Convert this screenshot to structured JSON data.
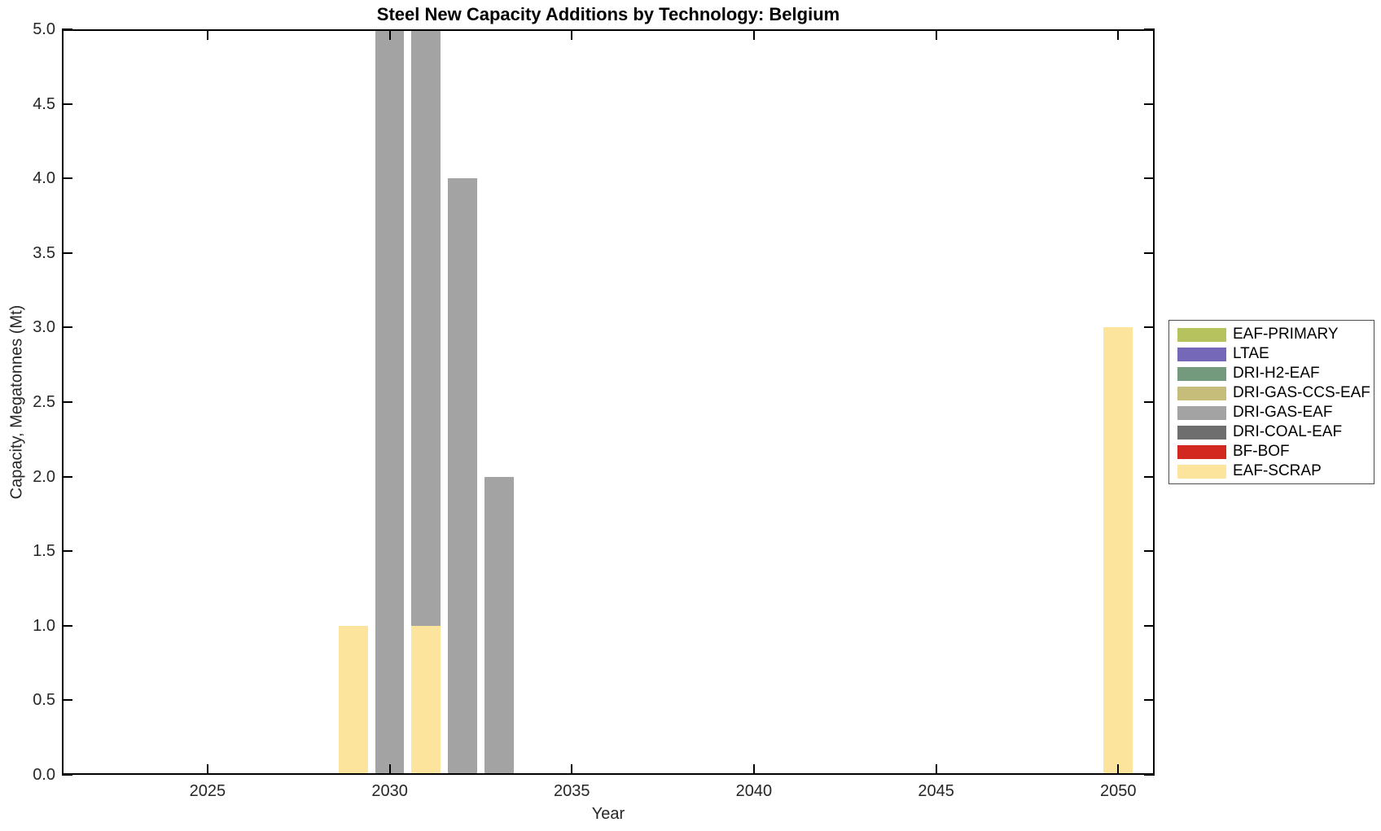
{
  "figure": {
    "background_color": "#ffffff",
    "axis_color": "#000000",
    "tick_label_color": "#262626"
  },
  "chart_data": {
    "type": "bar",
    "title": "Steel New Capacity Additions by Technology: Belgium",
    "xlabel": "Year",
    "ylabel": "Capacity, Megatonnes (Mt)",
    "xlim": [
      2021,
      2051
    ],
    "ylim": [
      0,
      5
    ],
    "x_ticks": [
      2025,
      2030,
      2035,
      2040,
      2045,
      2050
    ],
    "x_tick_labels": [
      "2025",
      "2030",
      "2035",
      "2040",
      "2045",
      "2050"
    ],
    "y_ticks": [
      0,
      0.5,
      1,
      1.5,
      2,
      2.5,
      3,
      3.5,
      4,
      4.5,
      5
    ],
    "y_tick_labels": [
      "0.0",
      "0.5",
      "1.0",
      "1.5",
      "2.0",
      "2.5",
      "3.0",
      "3.5",
      "4.0",
      "4.5",
      "5.0"
    ],
    "grid": false,
    "bar_width_years": 0.8,
    "stacked": true,
    "legend_position": "right, outside plot",
    "series_colors": {
      "EAF-PRIMARY": "#b5c25e",
      "LTAE": "#7568b8",
      "DRI-H2-EAF": "#739a7c",
      "DRI-GAS-CCS-EAF": "#c6bd7b",
      "DRI-GAS-EAF": "#a3a3a3",
      "DRI-COAL-EAF": "#6e6e6e",
      "BF-BOF": "#d1281f",
      "EAF-SCRAP": "#fce49c"
    },
    "legend": {
      "items": [
        {
          "label": "EAF-PRIMARY",
          "color": "#b5c25e"
        },
        {
          "label": "LTAE",
          "color": "#7568b8"
        },
        {
          "label": "DRI-H2-EAF",
          "color": "#739a7c"
        },
        {
          "label": "DRI-GAS-CCS-EAF",
          "color": "#c6bd7b"
        },
        {
          "label": "DRI-GAS-EAF",
          "color": "#a3a3a3"
        },
        {
          "label": "DRI-COAL-EAF",
          "color": "#6e6e6e"
        },
        {
          "label": "BF-BOF",
          "color": "#d1281f"
        },
        {
          "label": "EAF-SCRAP",
          "color": "#fce49c"
        }
      ]
    },
    "bars": [
      {
        "year": 2029,
        "segments": [
          {
            "tech": "EAF-SCRAP",
            "value": 1.0,
            "clipped": false
          }
        ]
      },
      {
        "year": 2030,
        "segments": [
          {
            "tech": "DRI-GAS-EAF",
            "value": 5.0,
            "clipped": true,
            "note": "bar extends above y-axis maximum of 5.0; true value not readable"
          }
        ]
      },
      {
        "year": 2031,
        "segments": [
          {
            "tech": "EAF-SCRAP",
            "value": 1.0,
            "clipped": false
          },
          {
            "tech": "DRI-GAS-EAF",
            "value": 4.0,
            "clipped": true,
            "note": "stack extends above y-axis maximum of 5.0; true value not readable"
          }
        ]
      },
      {
        "year": 2032,
        "segments": [
          {
            "tech": "DRI-GAS-EAF",
            "value": 4.0,
            "clipped": false
          }
        ]
      },
      {
        "year": 2033,
        "segments": [
          {
            "tech": "DRI-GAS-EAF",
            "value": 2.0,
            "clipped": false
          }
        ]
      },
      {
        "year": 2050,
        "segments": [
          {
            "tech": "EAF-SCRAP",
            "value": 3.0,
            "clipped": false
          }
        ]
      }
    ]
  }
}
